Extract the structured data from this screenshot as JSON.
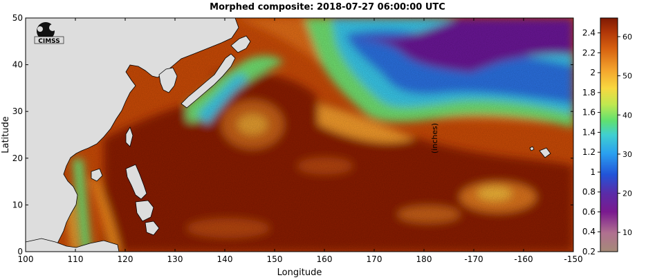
{
  "title": "Morphed composite: 2018-07-27 06:00:00 UTC",
  "logo_text": "CIMSS",
  "units_label": "(inches)",
  "x_axis": {
    "label": "Longitude",
    "ticks": [
      "100",
      "110",
      "120",
      "130",
      "140",
      "150",
      "160",
      "170",
      "180",
      "-170",
      "-160",
      "-150"
    ]
  },
  "y_axis": {
    "label": "Latitude",
    "ticks": [
      "0",
      "10",
      "20",
      "30",
      "40",
      "50"
    ]
  },
  "colorbar": {
    "left_ticks": [
      "0.2",
      "0.4",
      "0.6",
      "0.8",
      "1",
      "1.2",
      "1.4",
      "1.6",
      "1.8",
      "2",
      "2.2",
      "2.4"
    ],
    "right_ticks": [
      "10",
      "20",
      "30",
      "40",
      "50",
      "60"
    ]
  },
  "map_extent": {
    "lon_min": 100,
    "lon_max": 210,
    "lat_min": 0,
    "lat_max": 50
  },
  "colors": {
    "land": "#dddddd",
    "very_wet": "#8a1d05",
    "wet": "#c94a06",
    "moist": "#ef8a1f",
    "mid": "#f6c640",
    "green": "#6fe070",
    "cyan": "#38c7e8",
    "blue": "#2a6fe0",
    "purple": "#6a1896"
  }
}
